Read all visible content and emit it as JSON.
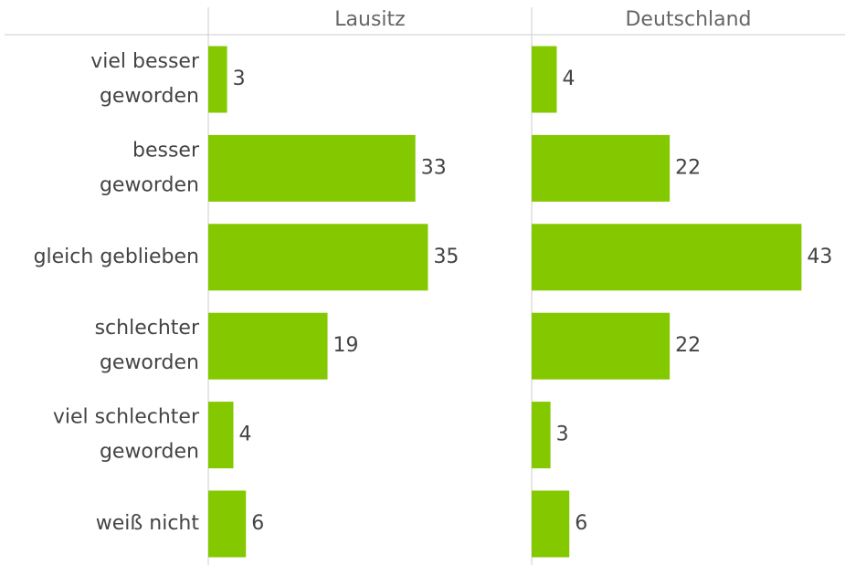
{
  "chart_data": [
    {
      "type": "bar",
      "orientation": "horizontal",
      "title": "Lausitz",
      "color": "#84c800",
      "categories": [
        [
          "viel besser",
          "geworden"
        ],
        [
          "besser",
          "geworden"
        ],
        [
          "gleich geblieben"
        ],
        [
          "schlechter",
          "geworden"
        ],
        [
          "viel schlechter",
          "geworden"
        ],
        [
          "weiß nicht"
        ]
      ],
      "values": [
        3,
        33,
        35,
        19,
        4,
        6
      ]
    },
    {
      "type": "bar",
      "orientation": "horizontal",
      "title": "Deutschland",
      "color": "#84c800",
      "values": [
        4,
        22,
        43,
        22,
        3,
        6
      ]
    }
  ]
}
